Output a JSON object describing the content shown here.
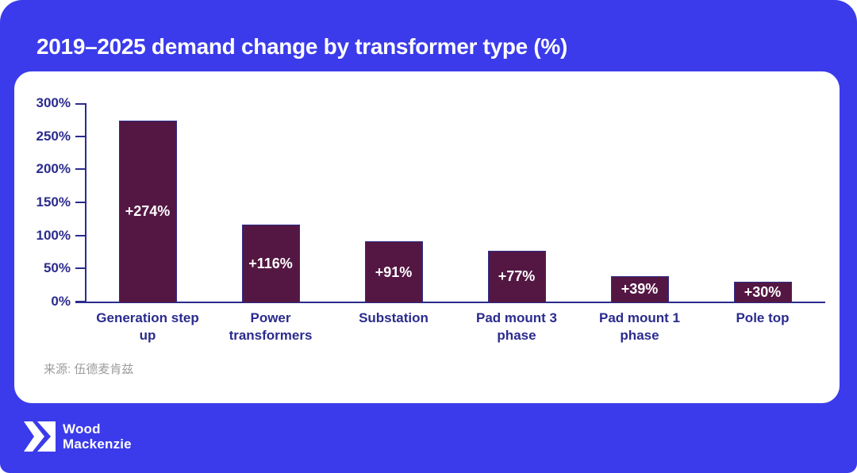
{
  "colors": {
    "background_blue": "#3b3beb",
    "card_white": "#ffffff",
    "navy": "#2b2b8e",
    "bar_fill": "#541743",
    "bar_border": "#2d2d8a",
    "bar_label_white": "#ffffff",
    "source_gray": "#9c9c9c"
  },
  "header": {
    "title": "2019–2025 demand change by transformer type (%)"
  },
  "chart_data": {
    "type": "bar",
    "title": "2019–2025 demand change by transformer type (%)",
    "categories": [
      "Generation step up",
      "Power transformers",
      "Substation",
      "Pad mount 3 phase",
      "Pad mount 1 phase",
      "Pole top"
    ],
    "values": [
      274,
      116,
      91,
      77,
      39,
      30
    ],
    "value_labels": [
      "+274%",
      "+116%",
      "+91%",
      "+77%",
      "+39%",
      "+30%"
    ],
    "xlabel": "",
    "ylabel": "",
    "ylim": [
      0,
      300
    ],
    "y_tick_values": [
      0,
      50,
      100,
      150,
      200,
      250,
      300
    ],
    "y_tick_labels": [
      "0%",
      "50%",
      "100%",
      "150%",
      "200%",
      "250%",
      "300%"
    ],
    "grid": false,
    "legend": "none"
  },
  "source": {
    "text": "来源: 伍德麦肯兹"
  },
  "logo": {
    "name": "Wood Mackenzie",
    "line1": "Wood",
    "line2": "Mackenzie"
  }
}
